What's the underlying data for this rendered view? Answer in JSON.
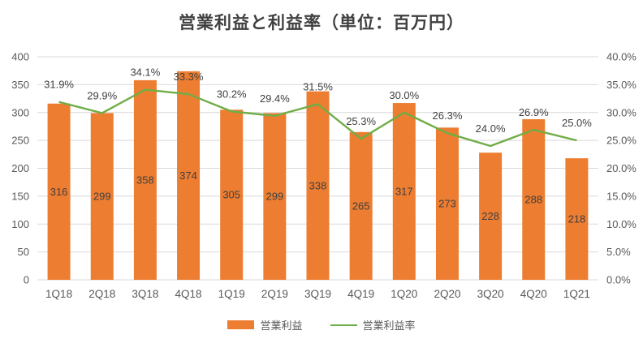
{
  "chart_data": {
    "type": "bar+line combo",
    "title": "営業利益と利益率（単位：百万円）",
    "categories": [
      "1Q18",
      "2Q18",
      "3Q18",
      "4Q18",
      "1Q19",
      "2Q19",
      "3Q19",
      "4Q19",
      "1Q20",
      "2Q20",
      "3Q20",
      "4Q20",
      "1Q21"
    ],
    "series": [
      {
        "name": "営業利益",
        "type": "bar",
        "axis": "left",
        "color": "#ED7D31",
        "values": [
          316,
          299,
          358,
          374,
          305,
          299,
          338,
          265,
          317,
          273,
          228,
          288,
          218
        ],
        "data_labels": [
          "316",
          "299",
          "358",
          "374",
          "305",
          "299",
          "338",
          "265",
          "317",
          "273",
          "228",
          "288",
          "218"
        ]
      },
      {
        "name": "営業利益率",
        "type": "line",
        "axis": "right",
        "color": "#70AD47",
        "values": [
          31.9,
          29.9,
          34.1,
          33.3,
          30.2,
          29.4,
          31.5,
          25.3,
          30.0,
          26.3,
          24.0,
          26.9,
          25.0
        ],
        "data_labels": [
          "31.9%",
          "29.9%",
          "34.1%",
          "33.3%",
          "30.2%",
          "29.4%",
          "31.5%",
          "25.3%",
          "30.0%",
          "26.3%",
          "24.0%",
          "26.9%",
          "25.0%"
        ]
      }
    ],
    "left_axis": {
      "min": 0,
      "max": 400,
      "step": 50,
      "tick_labels": [
        "0",
        "50",
        "100",
        "150",
        "200",
        "250",
        "300",
        "350",
        "400"
      ]
    },
    "right_axis": {
      "min": 0,
      "max": 40,
      "step": 5,
      "tick_labels": [
        "0.0%",
        "5.0%",
        "10.0%",
        "15.0%",
        "20.0%",
        "25.0%",
        "30.0%",
        "35.0%",
        "40.0%"
      ]
    },
    "grid": "horizontal",
    "legend_position": "bottom",
    "colors": {
      "bar": "#ED7D31",
      "line": "#70AD47",
      "gridline": "#D9D9D9",
      "axis_text": "#595959",
      "data_label_text": "#404040",
      "title_text": "#404040"
    }
  }
}
